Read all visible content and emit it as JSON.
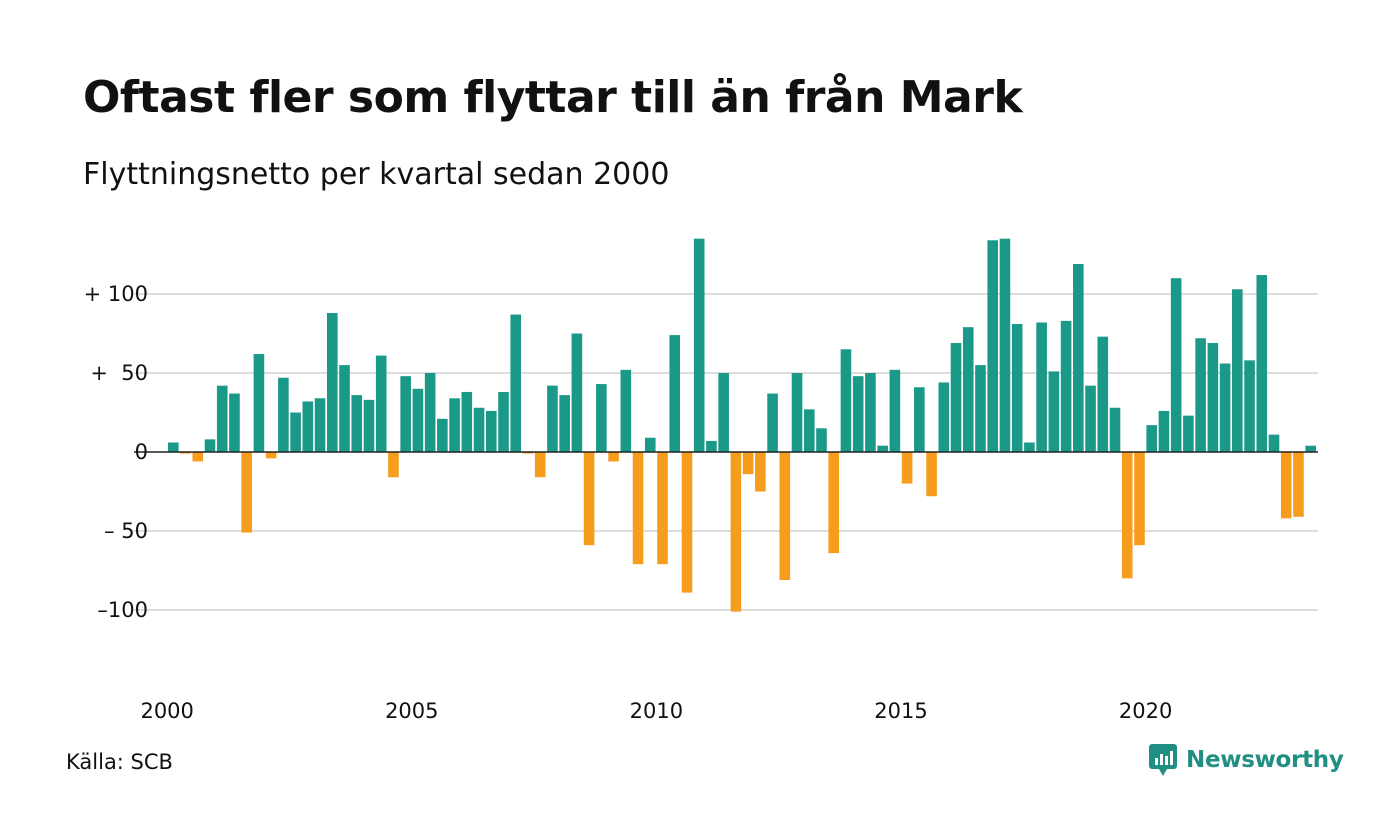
{
  "title": "Oftast fler som flyttar till än från Mark",
  "subtitle": "Flyttningsnetto per kvartal sedan 2000",
  "source": "Källa: SCB",
  "brand": {
    "name": "Newsworthy",
    "icon": "newsworthy-logo-icon"
  },
  "colors": {
    "positive": "#1a9988",
    "negative": "#f79d1e",
    "grid": "#dddddd",
    "brand": "#1f8f84"
  },
  "chart_data": {
    "type": "bar",
    "title": "Oftast fler som flyttar till än från Mark",
    "subtitle": "Flyttningsnetto per kvartal sedan 2000",
    "x_start": "2000 Q1",
    "x_ticks": [
      "2000",
      "2005",
      "2010",
      "2015",
      "2020"
    ],
    "y_ticks": [
      100,
      50,
      0,
      -50,
      -100
    ],
    "y_tick_labels": [
      "+ 100",
      "+  50",
      "0",
      "– 50",
      "–100"
    ],
    "ylim": [
      -125,
      140
    ],
    "grid": true,
    "values": [
      6,
      -1,
      -6,
      8,
      42,
      37,
      -51,
      62,
      -4,
      47,
      25,
      32,
      34,
      88,
      55,
      36,
      33,
      61,
      -16,
      48,
      40,
      50,
      21,
      34,
      38,
      28,
      26,
      38,
      87,
      -1,
      -16,
      42,
      36,
      75,
      -59,
      43,
      -6,
      52,
      -71,
      9,
      -71,
      74,
      -89,
      135,
      7,
      50,
      -101,
      -14,
      -25,
      37,
      -81,
      50,
      27,
      15,
      -64,
      65,
      48,
      50,
      4,
      52,
      -20,
      41,
      -28,
      44,
      69,
      79,
      55,
      134,
      135,
      81,
      6,
      82,
      51,
      83,
      119,
      42,
      73,
      28,
      -80,
      -59,
      17,
      26,
      110,
      23,
      72,
      69,
      56,
      103,
      58,
      112,
      11,
      -42,
      -41,
      4
    ]
  }
}
